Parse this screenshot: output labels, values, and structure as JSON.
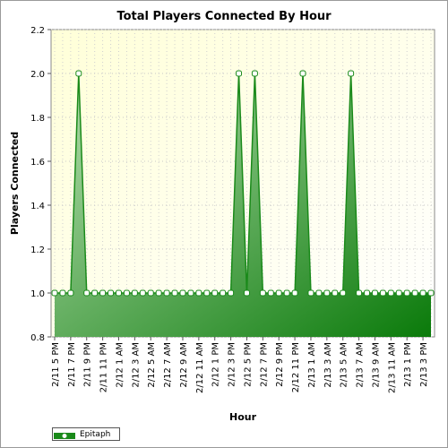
{
  "chart_data": {
    "type": "area",
    "title": "Total Players Connected By Hour",
    "xlabel": "Hour",
    "ylabel": "Players Connected",
    "ylim": [
      0.8,
      2.2
    ],
    "yticks": [
      0.8,
      1.0,
      1.2,
      1.4,
      1.6,
      1.8,
      2.0,
      2.2
    ],
    "ytick_labels": [
      "0.8",
      "1.0",
      "1.2",
      "1.4",
      "1.6",
      "1.8",
      "2.0",
      "2.2"
    ],
    "grid": true,
    "legend_position": "bottom-left",
    "tick_labels": [
      "2/11 5 PM",
      "2/11 7 PM",
      "2/11 9 PM",
      "2/11 11 PM",
      "2/12 1 AM",
      "2/12 3 AM",
      "2/12 5 AM",
      "2/12 7 AM",
      "2/12 9 AM",
      "2/12 11 AM",
      "2/12 1 PM",
      "2/12 3 PM",
      "2/12 5 PM",
      "2/12 7 PM",
      "2/12 9 PM",
      "2/12 11 PM",
      "2/13 1 AM",
      "2/13 3 AM",
      "2/13 5 AM",
      "2/13 7 AM",
      "2/13 9 AM",
      "2/13 11 AM",
      "2/13 1 PM",
      "2/13 3 PM"
    ],
    "series": [
      {
        "name": "Epitaph",
        "values": [
          1,
          1,
          1,
          2,
          1,
          1,
          1,
          1,
          1,
          1,
          1,
          1,
          1,
          1,
          1,
          1,
          1,
          1,
          1,
          1,
          1,
          1,
          1,
          2,
          1,
          2,
          1,
          1,
          1,
          1,
          1,
          2,
          1,
          1,
          1,
          1,
          1,
          2,
          1,
          1,
          1,
          1,
          1,
          1,
          1,
          1,
          1,
          1
        ]
      }
    ],
    "colors": {
      "plot_background_top": "#ffffd8",
      "line": "#1a8a1a",
      "fill_light": "#b7dfb0",
      "fill_dark": "#0a7a0a",
      "marker_fill": "#ffffff"
    }
  }
}
